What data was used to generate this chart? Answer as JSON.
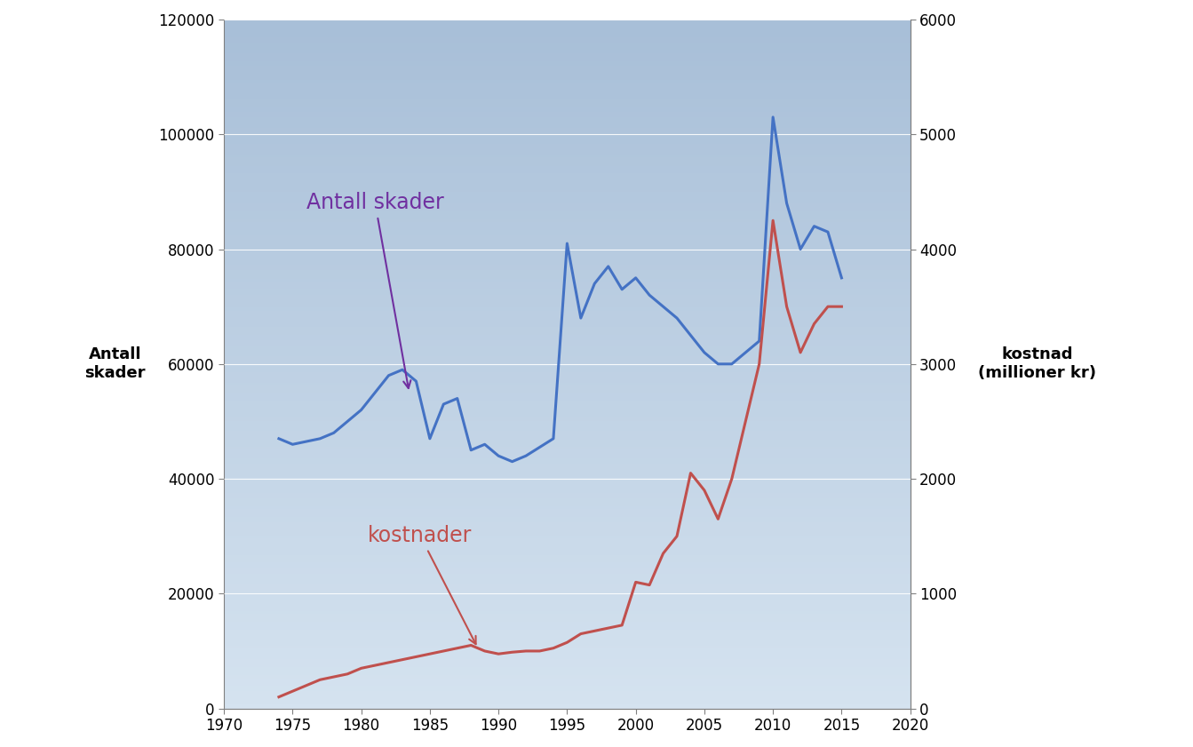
{
  "years_blue": [
    1974,
    1975,
    1976,
    1977,
    1978,
    1979,
    1980,
    1981,
    1982,
    1983,
    1984,
    1985,
    1986,
    1987,
    1988,
    1989,
    1990,
    1991,
    1992,
    1993,
    1994,
    1995,
    1996,
    1997,
    1998,
    1999,
    2000,
    2001,
    2002,
    2003,
    2004,
    2005,
    2006,
    2007,
    2008,
    2009,
    2010,
    2011,
    2012,
    2013,
    2014,
    2015
  ],
  "values_blue": [
    47000,
    46000,
    46500,
    47000,
    48000,
    50000,
    52000,
    55000,
    58000,
    59000,
    57000,
    47000,
    53000,
    54000,
    45000,
    46000,
    44000,
    43000,
    44000,
    45500,
    47000,
    81000,
    68000,
    74000,
    77000,
    73000,
    75000,
    72000,
    70000,
    68000,
    65000,
    62000,
    60000,
    60000,
    62000,
    64000,
    103000,
    88000,
    80000,
    84000,
    83000,
    75000
  ],
  "years_red": [
    1974,
    1975,
    1976,
    1977,
    1978,
    1979,
    1980,
    1981,
    1982,
    1983,
    1984,
    1985,
    1986,
    1987,
    1988,
    1989,
    1990,
    1991,
    1992,
    1993,
    1994,
    1995,
    1996,
    1997,
    1998,
    1999,
    2000,
    2001,
    2002,
    2003,
    2004,
    2005,
    2006,
    2007,
    2008,
    2009,
    2010,
    2011,
    2012,
    2013,
    2014,
    2015
  ],
  "values_red": [
    2000,
    3000,
    4000,
    5000,
    5500,
    6000,
    7000,
    7500,
    8000,
    8500,
    9000,
    9500,
    10000,
    10500,
    11000,
    10000,
    9500,
    9800,
    10000,
    10000,
    10500,
    11500,
    13000,
    13500,
    14000,
    14500,
    22000,
    21500,
    27000,
    30000,
    41000,
    38000,
    33000,
    40000,
    50000,
    60000,
    85000,
    70000,
    62000,
    67000,
    70000,
    70000
  ],
  "xlim": [
    1970,
    2020
  ],
  "ylim_left": [
    0,
    120000
  ],
  "ylim_right": [
    0,
    6000
  ],
  "xticks": [
    1970,
    1975,
    1980,
    1985,
    1990,
    1995,
    2000,
    2005,
    2010,
    2015,
    2020
  ],
  "yticks_left": [
    0,
    20000,
    40000,
    60000,
    80000,
    100000,
    120000
  ],
  "yticks_right": [
    0,
    1000,
    2000,
    3000,
    4000,
    5000,
    6000
  ],
  "ylabel_left": "Antall\nskader",
  "ylabel_right": "kostnad\n(millioner kr)",
  "blue_color": "#4472C4",
  "red_color": "#C0504D",
  "annotation_blue_text": "Antall skader",
  "annotation_blue_color": "#7030A0",
  "annotation_red_text": "kostnader",
  "annotation_red_color": "#C0504D",
  "line_width": 2.2,
  "bg_top_color": "#A8BFD8",
  "bg_bottom_color": "#D5E3F0"
}
